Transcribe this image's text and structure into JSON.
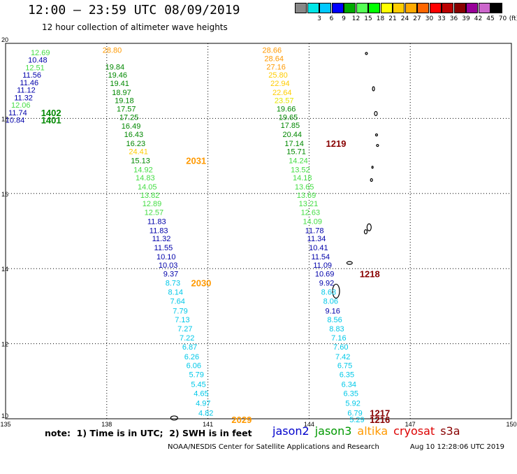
{
  "header": {
    "title": "12:00 – 23:59 UTC 08/09/2019",
    "subtitle": "12 hour collection of altimeter wave heights"
  },
  "colorbar": {
    "unit_label": "(ft)",
    "steps": [
      {
        "label": "",
        "color": "#888888"
      },
      {
        "label": "3",
        "color": "#00e6e6"
      },
      {
        "label": "6",
        "color": "#00c8ff"
      },
      {
        "label": "9",
        "color": "#0000ff"
      },
      {
        "label": "12",
        "color": "#00aa00"
      },
      {
        "label": "15",
        "color": "#55ff55"
      },
      {
        "label": "18",
        "color": "#00ff00"
      },
      {
        "label": "21",
        "color": "#ffff00"
      },
      {
        "label": "24",
        "color": "#ffcc00"
      },
      {
        "label": "27",
        "color": "#ffaa00"
      },
      {
        "label": "30",
        "color": "#ff6600"
      },
      {
        "label": "33",
        "color": "#ff0000"
      },
      {
        "label": "36",
        "color": "#bb0000"
      },
      {
        "label": "39",
        "color": "#880000"
      },
      {
        "label": "42",
        "color": "#990099"
      },
      {
        "label": "45",
        "color": "#cc66cc"
      },
      {
        "label": "70",
        "color": "#000000"
      }
    ]
  },
  "axes": {
    "lon_ticks": [
      "135",
      "138",
      "141",
      "144",
      "147",
      "150"
    ],
    "lat_ticks": [
      "20",
      "18",
      "16",
      "14",
      "12",
      "10"
    ],
    "lon_range": [
      135,
      150
    ],
    "lat_range": [
      10,
      20
    ]
  },
  "colors": {
    "jason2": "#0000cc",
    "jason3": "#009900",
    "altika": "#ff9900",
    "cryosat": "#dd0000",
    "s3a": "#880000",
    "c_cyan": "#00c8e8",
    "c_lgreen": "#44dd44",
    "c_dgreen": "#008800",
    "c_navy": "#0000aa",
    "c_yellow": "#e6e600",
    "c_gold": "#ffcc00",
    "c_orange": "#ff9900",
    "c_dred": "#880000"
  },
  "observations": [
    {
      "lon": 136.03,
      "lat": 19.76,
      "v": "12.69",
      "c": "c_lgreen"
    },
    {
      "lon": 135.95,
      "lat": 19.56,
      "v": "10.48",
      "c": "c_navy"
    },
    {
      "lon": 135.87,
      "lat": 19.36,
      "v": "12.51",
      "c": "c_lgreen"
    },
    {
      "lon": 135.78,
      "lat": 19.16,
      "v": "11.56",
      "c": "c_navy"
    },
    {
      "lon": 135.7,
      "lat": 18.96,
      "v": "11.46",
      "c": "c_navy"
    },
    {
      "lon": 135.61,
      "lat": 18.76,
      "v": "11.12",
      "c": "c_navy"
    },
    {
      "lon": 135.53,
      "lat": 18.56,
      "v": "11.32",
      "c": "c_navy"
    },
    {
      "lon": 135.45,
      "lat": 18.36,
      "v": "12.06",
      "c": "c_lgreen"
    },
    {
      "lon": 135.36,
      "lat": 18.16,
      "v": "11.74",
      "c": "c_navy"
    },
    {
      "lon": 135.28,
      "lat": 17.96,
      "v": "10.84",
      "c": "c_navy"
    },
    {
      "lon": 138.16,
      "lat": 19.82,
      "v": "28.80",
      "c": "c_orange"
    },
    {
      "lon": 138.24,
      "lat": 19.38,
      "v": "19.84",
      "c": "c_dgreen"
    },
    {
      "lon": 138.32,
      "lat": 19.16,
      "v": "19.46",
      "c": "c_dgreen"
    },
    {
      "lon": 138.38,
      "lat": 18.94,
      "v": "19.41",
      "c": "c_dgreen"
    },
    {
      "lon": 138.44,
      "lat": 18.7,
      "v": "18.97",
      "c": "c_dgreen"
    },
    {
      "lon": 138.52,
      "lat": 18.48,
      "v": "19.18",
      "c": "c_dgreen"
    },
    {
      "lon": 138.58,
      "lat": 18.26,
      "v": "17.57",
      "c": "c_dgreen"
    },
    {
      "lon": 138.66,
      "lat": 18.04,
      "v": "17.25",
      "c": "c_dgreen"
    },
    {
      "lon": 138.72,
      "lat": 17.8,
      "v": "16.49",
      "c": "c_dgreen"
    },
    {
      "lon": 138.8,
      "lat": 17.58,
      "v": "16.43",
      "c": "c_dgreen"
    },
    {
      "lon": 138.86,
      "lat": 17.34,
      "v": "16.23",
      "c": "c_dgreen"
    },
    {
      "lon": 138.94,
      "lat": 17.12,
      "v": "24.41",
      "c": "c_gold"
    },
    {
      "lon": 139.0,
      "lat": 16.88,
      "v": "15.13",
      "c": "c_dgreen"
    },
    {
      "lon": 139.08,
      "lat": 16.64,
      "v": "14.92",
      "c": "c_lgreen"
    },
    {
      "lon": 139.14,
      "lat": 16.42,
      "v": "14.83",
      "c": "c_lgreen"
    },
    {
      "lon": 139.2,
      "lat": 16.18,
      "v": "14.05",
      "c": "c_lgreen"
    },
    {
      "lon": 139.28,
      "lat": 15.96,
      "v": "13.82",
      "c": "c_lgreen"
    },
    {
      "lon": 139.34,
      "lat": 15.74,
      "v": "12.89",
      "c": "c_lgreen"
    },
    {
      "lon": 139.4,
      "lat": 15.5,
      "v": "12.57",
      "c": "c_lgreen"
    },
    {
      "lon": 139.48,
      "lat": 15.26,
      "v": "11.83",
      "c": "c_navy"
    },
    {
      "lon": 139.54,
      "lat": 15.02,
      "v": "11.83",
      "c": "c_navy"
    },
    {
      "lon": 139.62,
      "lat": 14.8,
      "v": "11.32",
      "c": "c_navy"
    },
    {
      "lon": 139.68,
      "lat": 14.56,
      "v": "11.55",
      "c": "c_navy"
    },
    {
      "lon": 139.76,
      "lat": 14.32,
      "v": "10.10",
      "c": "c_navy"
    },
    {
      "lon": 139.82,
      "lat": 14.1,
      "v": "10.03",
      "c": "c_navy"
    },
    {
      "lon": 139.9,
      "lat": 13.86,
      "v": "9.37",
      "c": "c_navy"
    },
    {
      "lon": 139.96,
      "lat": 13.62,
      "v": "8.73",
      "c": "c_cyan"
    },
    {
      "lon": 140.04,
      "lat": 13.38,
      "v": "8.14",
      "c": "c_cyan"
    },
    {
      "lon": 140.1,
      "lat": 13.14,
      "v": "7.64",
      "c": "c_cyan"
    },
    {
      "lon": 140.18,
      "lat": 12.88,
      "v": "7.79",
      "c": "c_cyan"
    },
    {
      "lon": 140.24,
      "lat": 12.64,
      "v": "7.13",
      "c": "c_cyan"
    },
    {
      "lon": 140.32,
      "lat": 12.4,
      "v": "7.27",
      "c": "c_cyan"
    },
    {
      "lon": 140.38,
      "lat": 12.16,
      "v": "7.22",
      "c": "c_cyan"
    },
    {
      "lon": 140.46,
      "lat": 11.92,
      "v": "6.87",
      "c": "c_cyan"
    },
    {
      "lon": 140.52,
      "lat": 11.66,
      "v": "6.26",
      "c": "c_cyan"
    },
    {
      "lon": 140.58,
      "lat": 11.42,
      "v": "6.06",
      "c": "c_cyan"
    },
    {
      "lon": 140.66,
      "lat": 11.18,
      "v": "5.79",
      "c": "c_cyan"
    },
    {
      "lon": 140.72,
      "lat": 10.92,
      "v": "5.45",
      "c": "c_cyan"
    },
    {
      "lon": 140.8,
      "lat": 10.68,
      "v": "4.65",
      "c": "c_cyan"
    },
    {
      "lon": 140.86,
      "lat": 10.42,
      "v": "4.97",
      "c": "c_cyan"
    },
    {
      "lon": 140.94,
      "lat": 10.16,
      "v": "4.82",
      "c": "c_cyan"
    },
    {
      "lon": 142.9,
      "lat": 19.82,
      "v": "28.66",
      "c": "c_orange"
    },
    {
      "lon": 142.96,
      "lat": 19.6,
      "v": "28.64",
      "c": "c_orange"
    },
    {
      "lon": 143.02,
      "lat": 19.38,
      "v": "27.16",
      "c": "c_orange"
    },
    {
      "lon": 143.08,
      "lat": 19.16,
      "v": "25.80",
      "c": "c_gold"
    },
    {
      "lon": 143.14,
      "lat": 18.94,
      "v": "22.94",
      "c": "c_gold"
    },
    {
      "lon": 143.2,
      "lat": 18.7,
      "v": "22.64",
      "c": "c_gold"
    },
    {
      "lon": 143.26,
      "lat": 18.48,
      "v": "23.57",
      "c": "c_yellow"
    },
    {
      "lon": 143.32,
      "lat": 18.26,
      "v": "19.66",
      "c": "c_dgreen"
    },
    {
      "lon": 143.38,
      "lat": 18.04,
      "v": "19.65",
      "c": "c_dgreen"
    },
    {
      "lon": 143.44,
      "lat": 17.82,
      "v": "17.85",
      "c": "c_dgreen"
    },
    {
      "lon": 143.5,
      "lat": 17.58,
      "v": "20.44",
      "c": "c_dgreen"
    },
    {
      "lon": 143.56,
      "lat": 17.34,
      "v": "17.14",
      "c": "c_dgreen"
    },
    {
      "lon": 143.62,
      "lat": 17.12,
      "v": "15.71",
      "c": "c_dgreen"
    },
    {
      "lon": 143.68,
      "lat": 16.88,
      "v": "14.24",
      "c": "c_lgreen"
    },
    {
      "lon": 143.74,
      "lat": 16.64,
      "v": "13.52",
      "c": "c_lgreen"
    },
    {
      "lon": 143.8,
      "lat": 16.42,
      "v": "14.18",
      "c": "c_lgreen"
    },
    {
      "lon": 143.86,
      "lat": 16.18,
      "v": "13.65",
      "c": "c_lgreen"
    },
    {
      "lon": 143.92,
      "lat": 15.96,
      "v": "13.69",
      "c": "c_lgreen"
    },
    {
      "lon": 143.98,
      "lat": 15.74,
      "v": "13.21",
      "c": "c_lgreen"
    },
    {
      "lon": 144.04,
      "lat": 15.5,
      "v": "12.63",
      "c": "c_lgreen"
    },
    {
      "lon": 144.1,
      "lat": 15.26,
      "v": "14.09",
      "c": "c_lgreen"
    },
    {
      "lon": 144.16,
      "lat": 15.02,
      "v": "11.78",
      "c": "c_navy"
    },
    {
      "lon": 144.22,
      "lat": 14.8,
      "v": "11.34",
      "c": "c_navy"
    },
    {
      "lon": 144.28,
      "lat": 14.56,
      "v": "10.41",
      "c": "c_navy"
    },
    {
      "lon": 144.34,
      "lat": 14.32,
      "v": "11.54",
      "c": "c_navy"
    },
    {
      "lon": 144.4,
      "lat": 14.1,
      "v": "11.09",
      "c": "c_navy"
    },
    {
      "lon": 144.46,
      "lat": 13.86,
      "v": "10.69",
      "c": "c_navy"
    },
    {
      "lon": 144.52,
      "lat": 13.62,
      "v": "9.92",
      "c": "c_navy"
    },
    {
      "lon": 144.58,
      "lat": 13.38,
      "v": "8.63",
      "c": "c_cyan"
    },
    {
      "lon": 144.64,
      "lat": 13.14,
      "v": "8.06",
      "c": "c_cyan"
    },
    {
      "lon": 144.7,
      "lat": 12.88,
      "v": "9.16",
      "c": "c_navy"
    },
    {
      "lon": 144.76,
      "lat": 12.64,
      "v": "8.56",
      "c": "c_cyan"
    },
    {
      "lon": 144.82,
      "lat": 12.4,
      "v": "8.83",
      "c": "c_cyan"
    },
    {
      "lon": 144.88,
      "lat": 12.16,
      "v": "7.16",
      "c": "c_cyan"
    },
    {
      "lon": 144.94,
      "lat": 11.92,
      "v": "7.60",
      "c": "c_cyan"
    },
    {
      "lon": 145.0,
      "lat": 11.66,
      "v": "7.42",
      "c": "c_cyan"
    },
    {
      "lon": 145.06,
      "lat": 11.42,
      "v": "6.75",
      "c": "c_cyan"
    },
    {
      "lon": 145.12,
      "lat": 11.18,
      "v": "6.35",
      "c": "c_cyan"
    },
    {
      "lon": 145.18,
      "lat": 10.92,
      "v": "6.34",
      "c": "c_cyan"
    },
    {
      "lon": 145.24,
      "lat": 10.68,
      "v": "6.35",
      "c": "c_cyan"
    },
    {
      "lon": 145.3,
      "lat": 10.42,
      "v": "5.92",
      "c": "c_cyan"
    },
    {
      "lon": 145.36,
      "lat": 10.16,
      "v": "6.79",
      "c": "c_cyan"
    },
    {
      "lon": 145.42,
      "lat": 9.98,
      "v": "5.29",
      "c": "c_cyan"
    }
  ],
  "pass_labels": [
    {
      "lon": 136.35,
      "lat": 18.16,
      "t": "1402",
      "c": "c_dgreen"
    },
    {
      "lon": 136.35,
      "lat": 17.96,
      "t": "1401",
      "c": "c_dgreen"
    },
    {
      "lon": 140.65,
      "lat": 16.88,
      "t": "2031",
      "c": "c_orange"
    },
    {
      "lon": 140.8,
      "lat": 13.62,
      "t": "2030",
      "c": "c_orange"
    },
    {
      "lon": 142.0,
      "lat": 9.98,
      "t": "2029",
      "c": "c_orange"
    },
    {
      "lon": 144.8,
      "lat": 17.34,
      "t": "1219",
      "c": "c_dred"
    },
    {
      "lon": 145.8,
      "lat": 13.86,
      "t": "1218",
      "c": "c_dred"
    },
    {
      "lon": 146.1,
      "lat": 10.16,
      "t": "1217",
      "c": "c_dred"
    },
    {
      "lon": 146.1,
      "lat": 9.98,
      "t": "1216",
      "c": "c_dred"
    }
  ],
  "islands": [
    {
      "lon": 145.7,
      "lat": 19.73,
      "w": 3,
      "h": 3
    },
    {
      "lon": 145.91,
      "lat": 18.79,
      "w": 3,
      "h": 6
    },
    {
      "lon": 145.98,
      "lat": 18.13,
      "w": 4,
      "h": 6
    },
    {
      "lon": 146.0,
      "lat": 17.56,
      "w": 3,
      "h": 3
    },
    {
      "lon": 146.03,
      "lat": 17.28,
      "w": 3,
      "h": 3
    },
    {
      "lon": 145.88,
      "lat": 16.7,
      "w": 2,
      "h": 3
    },
    {
      "lon": 145.85,
      "lat": 16.36,
      "w": 3,
      "h": 4
    },
    {
      "lon": 145.78,
      "lat": 15.1,
      "w": 6,
      "h": 10
    },
    {
      "lon": 145.68,
      "lat": 14.98,
      "w": 4,
      "h": 6
    },
    {
      "lon": 145.2,
      "lat": 14.15,
      "w": 8,
      "h": 4
    },
    {
      "lon": 144.8,
      "lat": 13.4,
      "w": 10,
      "h": 20
    },
    {
      "lon": 140.0,
      "lat": 10.02,
      "w": 10,
      "h": 6
    }
  ],
  "note": "note:  1) Time is in UTC;  2) SWH is in feet",
  "legend": [
    {
      "name": "jason2",
      "c": "jason2"
    },
    {
      "name": "jason3",
      "c": "jason3"
    },
    {
      "name": "altika",
      "c": "altika"
    },
    {
      "name": "cryosat",
      "c": "cryosat"
    },
    {
      "name": "s3a",
      "c": "s3a"
    }
  ],
  "footer": {
    "credit": "NOAA/NESDIS Center for Satellite Applications and Research",
    "timestamp": "Aug 10 12:28:06 UTC 2019"
  }
}
